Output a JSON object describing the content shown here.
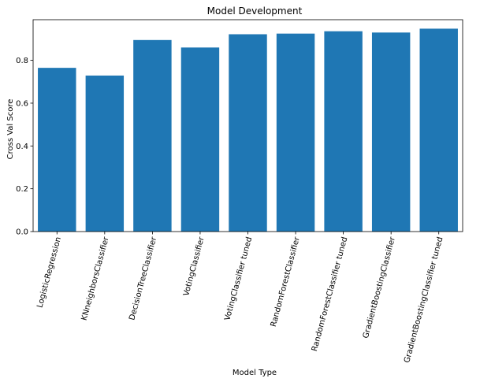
{
  "chart_data": {
    "type": "bar",
    "title": "Model Development",
    "xlabel": "Model Type",
    "ylabel": "Cross Val Score",
    "categories": [
      "LogisticRegression",
      "KNneighborsClassifier",
      "DecisionTreeClassifier",
      "VotingClassifier",
      "VotingClassifier tuned",
      "RandomForestClassifier",
      "RandomForestClassifier tuned",
      "GradientBoostingClassifier",
      "GradientBoostingClassifier tuned"
    ],
    "values": [
      0.765,
      0.729,
      0.895,
      0.86,
      0.922,
      0.925,
      0.936,
      0.93,
      0.948
    ],
    "ylim": [
      0,
      0.99
    ],
    "yticks": [
      0.0,
      0.2,
      0.4,
      0.6,
      0.8
    ],
    "ytick_labels": [
      "0.0",
      "0.2",
      "0.4",
      "0.6",
      "0.8"
    ],
    "bar_color": "#1f77b4",
    "grid": false,
    "xtick_rotation": 75
  }
}
